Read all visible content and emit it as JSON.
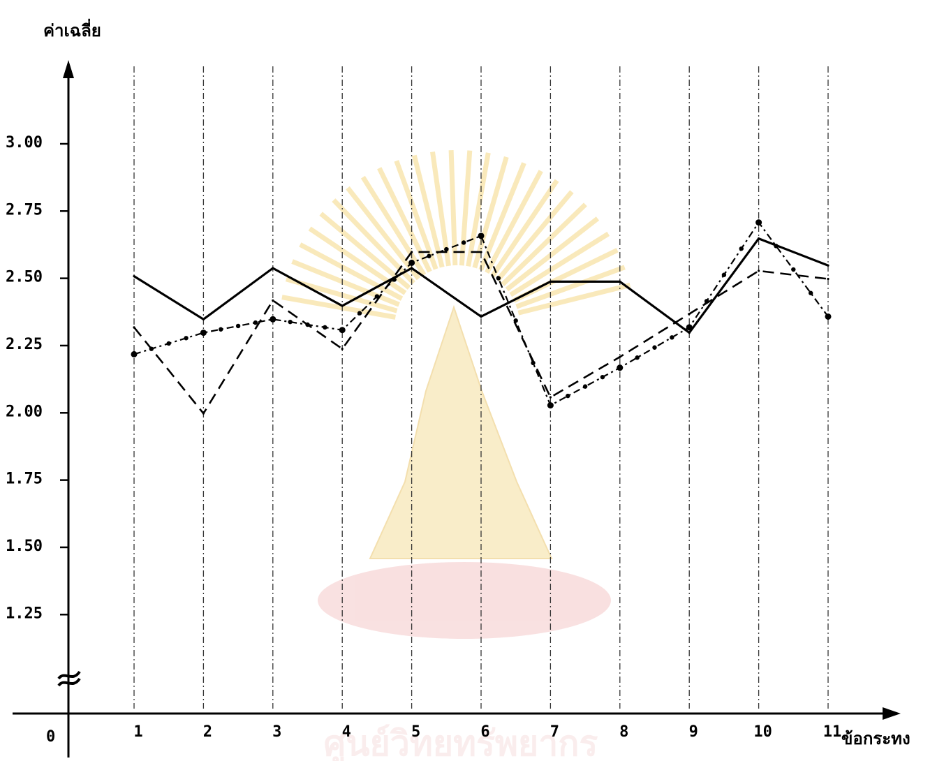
{
  "chart_data": {
    "type": "line",
    "title": "",
    "ylabel": "ค่าเฉลี่ย",
    "xlabel": "ข้อกระทง",
    "origin_label": "0",
    "categories": [
      "1",
      "2",
      "3",
      "4",
      "5",
      "6",
      "7",
      "8",
      "9",
      "10",
      "11"
    ],
    "y_ticks": [
      {
        "value": 3.0,
        "label": "3.00"
      },
      {
        "value": 2.75,
        "label": "2.75"
      },
      {
        "value": 2.5,
        "label": "2.50"
      },
      {
        "value": 2.25,
        "label": "2.25"
      },
      {
        "value": 2.0,
        "label": "2.00"
      },
      {
        "value": 1.75,
        "label": "1.75"
      },
      {
        "value": 1.5,
        "label": "1.50"
      },
      {
        "value": 1.25,
        "label": "1.25"
      }
    ],
    "ylim": [
      1.25,
      3.0
    ],
    "axis_break": true,
    "grid": "vertical dashed lines at each category",
    "series": [
      {
        "style": "solid",
        "color": "#000000",
        "values": [
          2.5,
          2.34,
          2.53,
          2.39,
          2.53,
          2.35,
          2.48,
          2.48,
          2.29,
          2.64,
          2.54
        ]
      },
      {
        "style": "dashed",
        "color": "#000000",
        "values": [
          2.31,
          1.99,
          2.41,
          2.23,
          2.59,
          2.59,
          2.05,
          2.2,
          2.36,
          2.52,
          2.49
        ]
      },
      {
        "style": "dash-dot with markers",
        "color": "#000000",
        "values": [
          2.21,
          2.29,
          2.34,
          2.3,
          2.55,
          2.65,
          2.02,
          2.16,
          2.31,
          2.7,
          2.35
        ]
      }
    ]
  },
  "watermark": {
    "text": "ศูนย์วิทยทรัพยากร",
    "color": "#e3a2a2"
  }
}
